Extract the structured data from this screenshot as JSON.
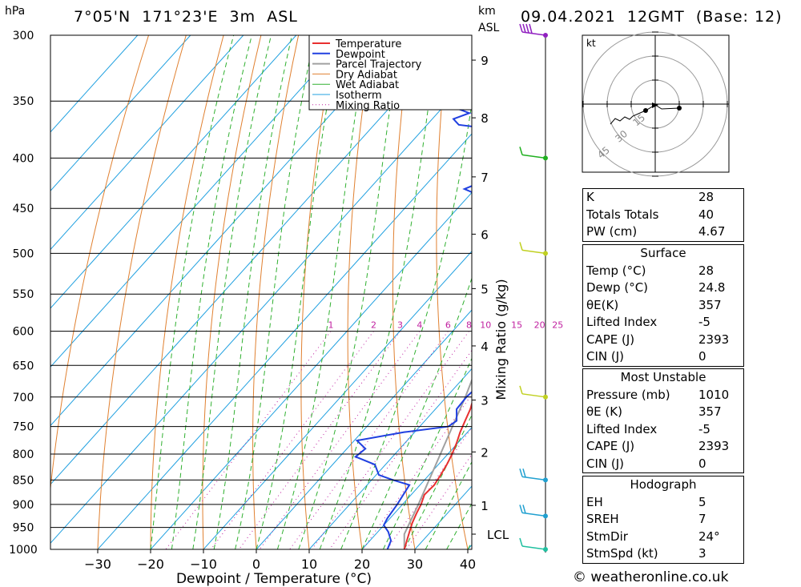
{
  "header": {
    "location": "7°05'N  171°23'E  3m  ASL",
    "datetime": "09.04.2021  12GMT  (Base: 12)",
    "hpa_unit": "hPa",
    "km_unit": "km",
    "asl_unit": "ASL"
  },
  "chart_data": {
    "type": "skew-t",
    "xlabel": "Dewpoint / Temperature (°C)",
    "ylabel_right": "Mixing Ratio (g/kg)",
    "x_ticks": [
      -30,
      -20,
      -10,
      0,
      10,
      20,
      30,
      40
    ],
    "pressure_levels": [
      300,
      350,
      400,
      450,
      500,
      550,
      600,
      650,
      700,
      750,
      800,
      850,
      900,
      950,
      1000
    ],
    "km_ticks": [
      {
        "label": "1",
        "p": 902
      },
      {
        "label": "2",
        "p": 796
      },
      {
        "label": "3",
        "p": 705
      },
      {
        "label": "4",
        "p": 621
      },
      {
        "label": "5",
        "p": 543
      },
      {
        "label": "6",
        "p": 478
      },
      {
        "label": "7",
        "p": 418
      },
      {
        "label": "8",
        "p": 364
      },
      {
        "label": "9",
        "p": 318
      }
    ],
    "lcl": {
      "label": "LCL",
      "p": 965
    },
    "mixing_ratio_labels": [
      "1",
      "2",
      "3",
      "4",
      "6",
      "8",
      "10",
      "15",
      "20",
      "25"
    ],
    "mixing_ratio_values": [
      1,
      2,
      3,
      4,
      6,
      8,
      10,
      15,
      20,
      25
    ],
    "legend": [
      "Temperature",
      "Dewpoint",
      "Parcel Trajectory",
      "Dry Adiabat",
      "Wet Adiabat",
      "Isotherm",
      "Mixing Ratio"
    ],
    "colors": {
      "temperature": "#e83030",
      "dewpoint": "#2040e0",
      "parcel": "#a0a0a0",
      "dry_adiabat": "#e08030",
      "wet_adiabat": "#30b030",
      "isotherm": "#20a0e0",
      "mixing_ratio": "#c020a0"
    },
    "temperature": [
      [
        1000,
        28
      ],
      [
        980,
        27
      ],
      [
        960,
        26
      ],
      [
        940,
        25
      ],
      [
        920,
        24.2
      ],
      [
        900,
        23.5
      ],
      [
        880,
        22.5
      ],
      [
        860,
        22.7
      ],
      [
        840,
        22.2
      ],
      [
        820,
        21.6
      ],
      [
        800,
        20.8
      ],
      [
        780,
        19.8
      ],
      [
        760,
        18.6
      ],
      [
        740,
        17.6
      ],
      [
        720,
        16.6
      ],
      [
        700,
        15.2
      ],
      [
        680,
        13.8
      ],
      [
        660,
        12.4
      ],
      [
        640,
        11.0
      ],
      [
        620,
        9.6
      ],
      [
        600,
        8.4
      ],
      [
        580,
        6.8
      ],
      [
        560,
        5.2
      ],
      [
        540,
        3.6
      ],
      [
        520,
        2.2
      ],
      [
        500,
        0.4
      ],
      [
        480,
        -2.0
      ],
      [
        460,
        -4.2
      ],
      [
        440,
        -6.6
      ],
      [
        420,
        -9.0
      ],
      [
        400,
        -11.8
      ],
      [
        380,
        -15.0
      ],
      [
        360,
        -18.4
      ],
      [
        345,
        -20.5
      ],
      [
        335,
        -22
      ]
    ],
    "dewpoint": [
      [
        1000,
        24.8
      ],
      [
        980,
        24
      ],
      [
        960,
        22
      ],
      [
        945,
        20
      ],
      [
        930,
        19.5
      ],
      [
        900,
        19
      ],
      [
        880,
        18.5
      ],
      [
        860,
        18
      ],
      [
        850,
        14
      ],
      [
        840,
        10.5
      ],
      [
        820,
        8
      ],
      [
        805,
        3
      ],
      [
        790,
        3.5
      ],
      [
        775,
        0.5
      ],
      [
        760,
        8
      ],
      [
        750,
        15.4
      ],
      [
        740,
        16
      ],
      [
        720,
        14
      ],
      [
        700,
        13.8
      ],
      [
        680,
        14.2
      ],
      [
        660,
        13
      ],
      [
        640,
        11.2
      ],
      [
        620,
        9.2
      ],
      [
        600,
        7
      ],
      [
        580,
        4.8
      ],
      [
        560,
        2.5
      ],
      [
        550,
        1.5
      ],
      [
        540,
        1.8
      ],
      [
        525,
        -0.2
      ],
      [
        515,
        -2.5
      ],
      [
        505,
        0.2
      ],
      [
        495,
        -4.8
      ],
      [
        475,
        -5.5
      ],
      [
        470,
        -11
      ],
      [
        460,
        -14
      ],
      [
        450,
        -15.5
      ],
      [
        440,
        -16
      ],
      [
        430,
        -22
      ],
      [
        420,
        -19
      ],
      [
        410,
        -14
      ],
      [
        400,
        -20
      ],
      [
        395,
        -14.5
      ],
      [
        385,
        -14
      ],
      [
        380,
        -14.5
      ],
      [
        370,
        -34
      ],
      [
        365,
        -36
      ],
      [
        360,
        -34
      ],
      [
        355,
        -38
      ],
      [
        350,
        -30
      ],
      [
        345,
        -29
      ],
      [
        340,
        -30
      ],
      [
        330,
        -55
      ],
      [
        320,
        -56
      ],
      [
        310,
        -54
      ],
      [
        300,
        -55
      ]
    ],
    "parcel": [
      [
        1000,
        28
      ],
      [
        965,
        25.4
      ],
      [
        900,
        23
      ],
      [
        800,
        18.6
      ],
      [
        700,
        13.6
      ],
      [
        600,
        7.2
      ],
      [
        500,
        -0.6
      ],
      [
        450,
        -5.2
      ],
      [
        400,
        -10.8
      ],
      [
        350,
        -17.4
      ],
      [
        335,
        -19.6
      ]
    ],
    "hodograph": {
      "unit": "kt",
      "ring_labels": [
        "15",
        "30",
        "45"
      ]
    },
    "wind_barbs": [
      {
        "p": 300,
        "color": "#9020c0",
        "speed_kt": 35
      },
      {
        "p": 400,
        "color": "#20b020",
        "speed_kt": 10
      },
      {
        "p": 500,
        "color": "#c0d020",
        "speed_kt": 5
      },
      {
        "p": 700,
        "color": "#c0d020",
        "speed_kt": 10
      },
      {
        "p": 850,
        "color": "#20a0d0",
        "speed_kt": 15
      },
      {
        "p": 925,
        "color": "#20a0d0",
        "speed_kt": 15
      },
      {
        "p": 1000,
        "color": "#20c0a0",
        "speed_kt": 10
      }
    ]
  },
  "indices": {
    "rows": [
      {
        "k": "K",
        "v": "28"
      },
      {
        "k": "Totals Totals",
        "v": "40"
      },
      {
        "k": "PW (cm)",
        "v": "4.67"
      }
    ]
  },
  "surface": {
    "title": "Surface",
    "rows": [
      {
        "k": "Temp (°C)",
        "v": "28"
      },
      {
        "k": "Dewp (°C)",
        "v": "24.8"
      },
      {
        "k": "θE(K)",
        "v": "357"
      },
      {
        "k": "Lifted Index",
        "v": "-5"
      },
      {
        "k": "CAPE (J)",
        "v": "2393"
      },
      {
        "k": "CIN (J)",
        "v": "0"
      }
    ]
  },
  "most_unstable": {
    "title": "Most Unstable",
    "rows": [
      {
        "k": "Pressure (mb)",
        "v": "1010"
      },
      {
        "k": "θE (K)",
        "v": "357"
      },
      {
        "k": "Lifted Index",
        "v": "-5"
      },
      {
        "k": "CAPE (J)",
        "v": "2393"
      },
      {
        "k": "CIN (J)",
        "v": "0"
      }
    ]
  },
  "hodograph_table": {
    "title": "Hodograph",
    "rows": [
      {
        "k": "EH",
        "v": "5"
      },
      {
        "k": "SREH",
        "v": "7"
      },
      {
        "k": "StmDir",
        "v": "24°"
      },
      {
        "k": "StmSpd (kt)",
        "v": "3"
      }
    ]
  },
  "footer": {
    "credit": "© weatheronline.co.uk"
  }
}
